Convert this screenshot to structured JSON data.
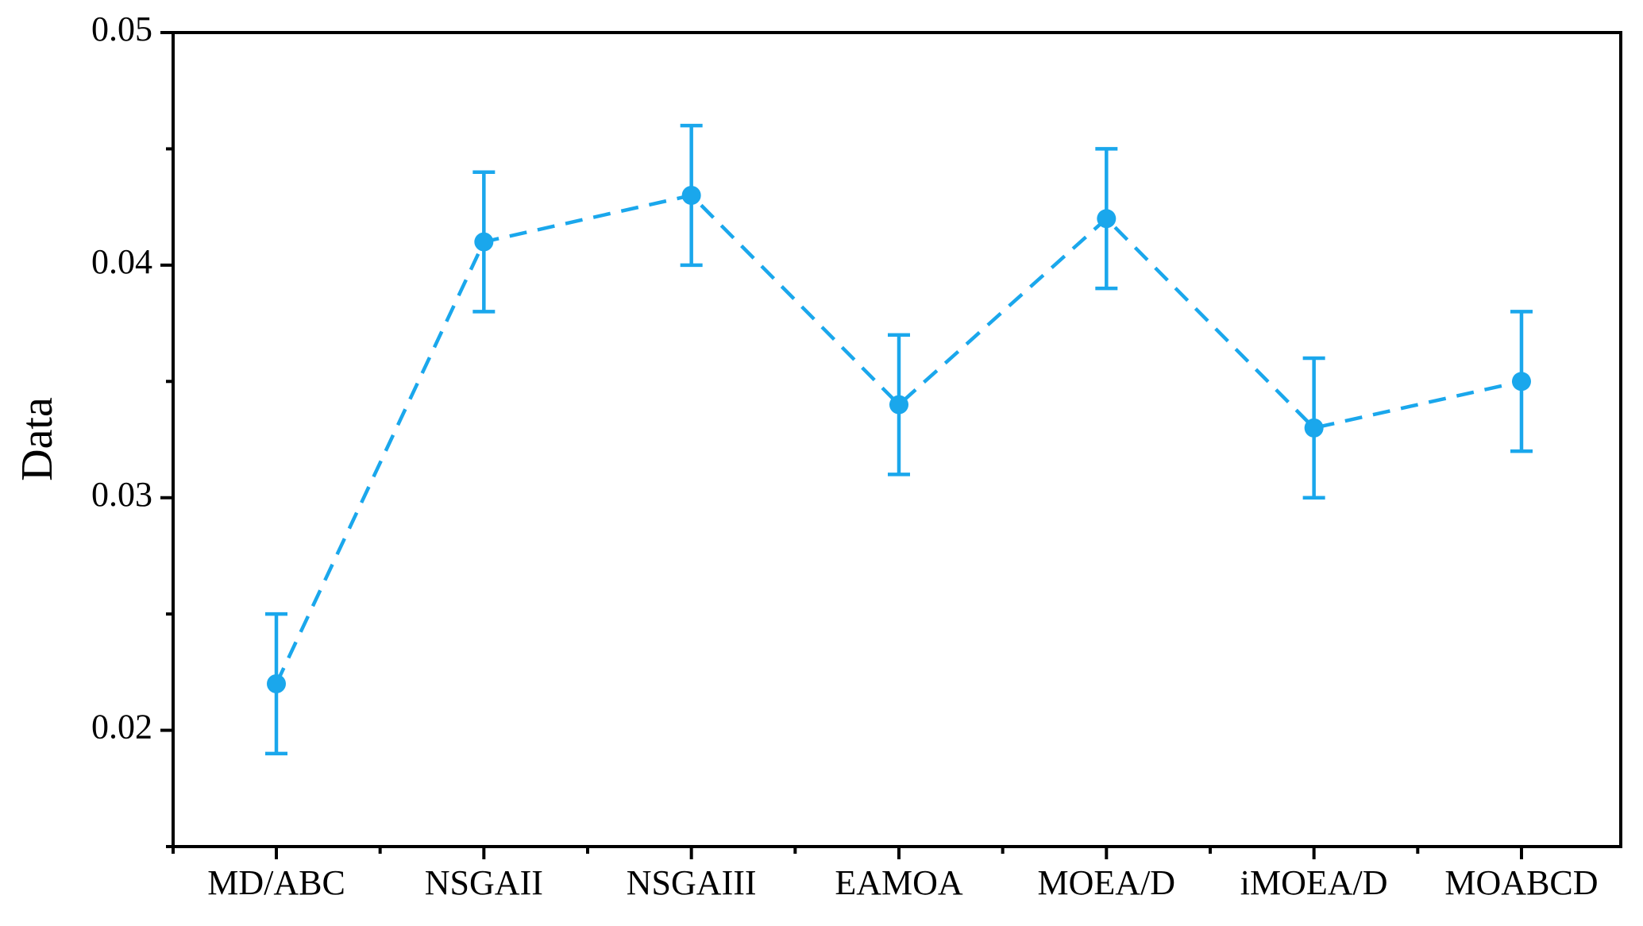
{
  "chart_data": {
    "type": "line",
    "line_style": "dashed",
    "marker": "circle",
    "error_bars": true,
    "xlabel": "",
    "ylabel": "Data",
    "categories": [
      "MD/ABC",
      "NSGAII",
      "NSGAIII",
      "EAMOA",
      "MOEA/D",
      "iMOEA/D",
      "MOABCD"
    ],
    "series": [
      {
        "values": [
          0.022,
          0.041,
          0.043,
          0.034,
          0.042,
          0.033,
          0.035
        ],
        "error_low": [
          0.019,
          0.038,
          0.04,
          0.031,
          0.039,
          0.03,
          0.032
        ],
        "error_high": [
          0.025,
          0.044,
          0.046,
          0.037,
          0.045,
          0.036,
          0.038
        ],
        "color": "#1aa7ec"
      }
    ],
    "ylim": [
      0.015,
      0.05
    ],
    "yticks": [
      0.02,
      0.03,
      0.04,
      0.05
    ],
    "ytick_labels": [
      "0.02",
      "0.03",
      "0.04",
      "0.05"
    ],
    "yminor_ticks": [
      0.025,
      0.035,
      0.045
    ],
    "grid": false,
    "legend": "none"
  }
}
